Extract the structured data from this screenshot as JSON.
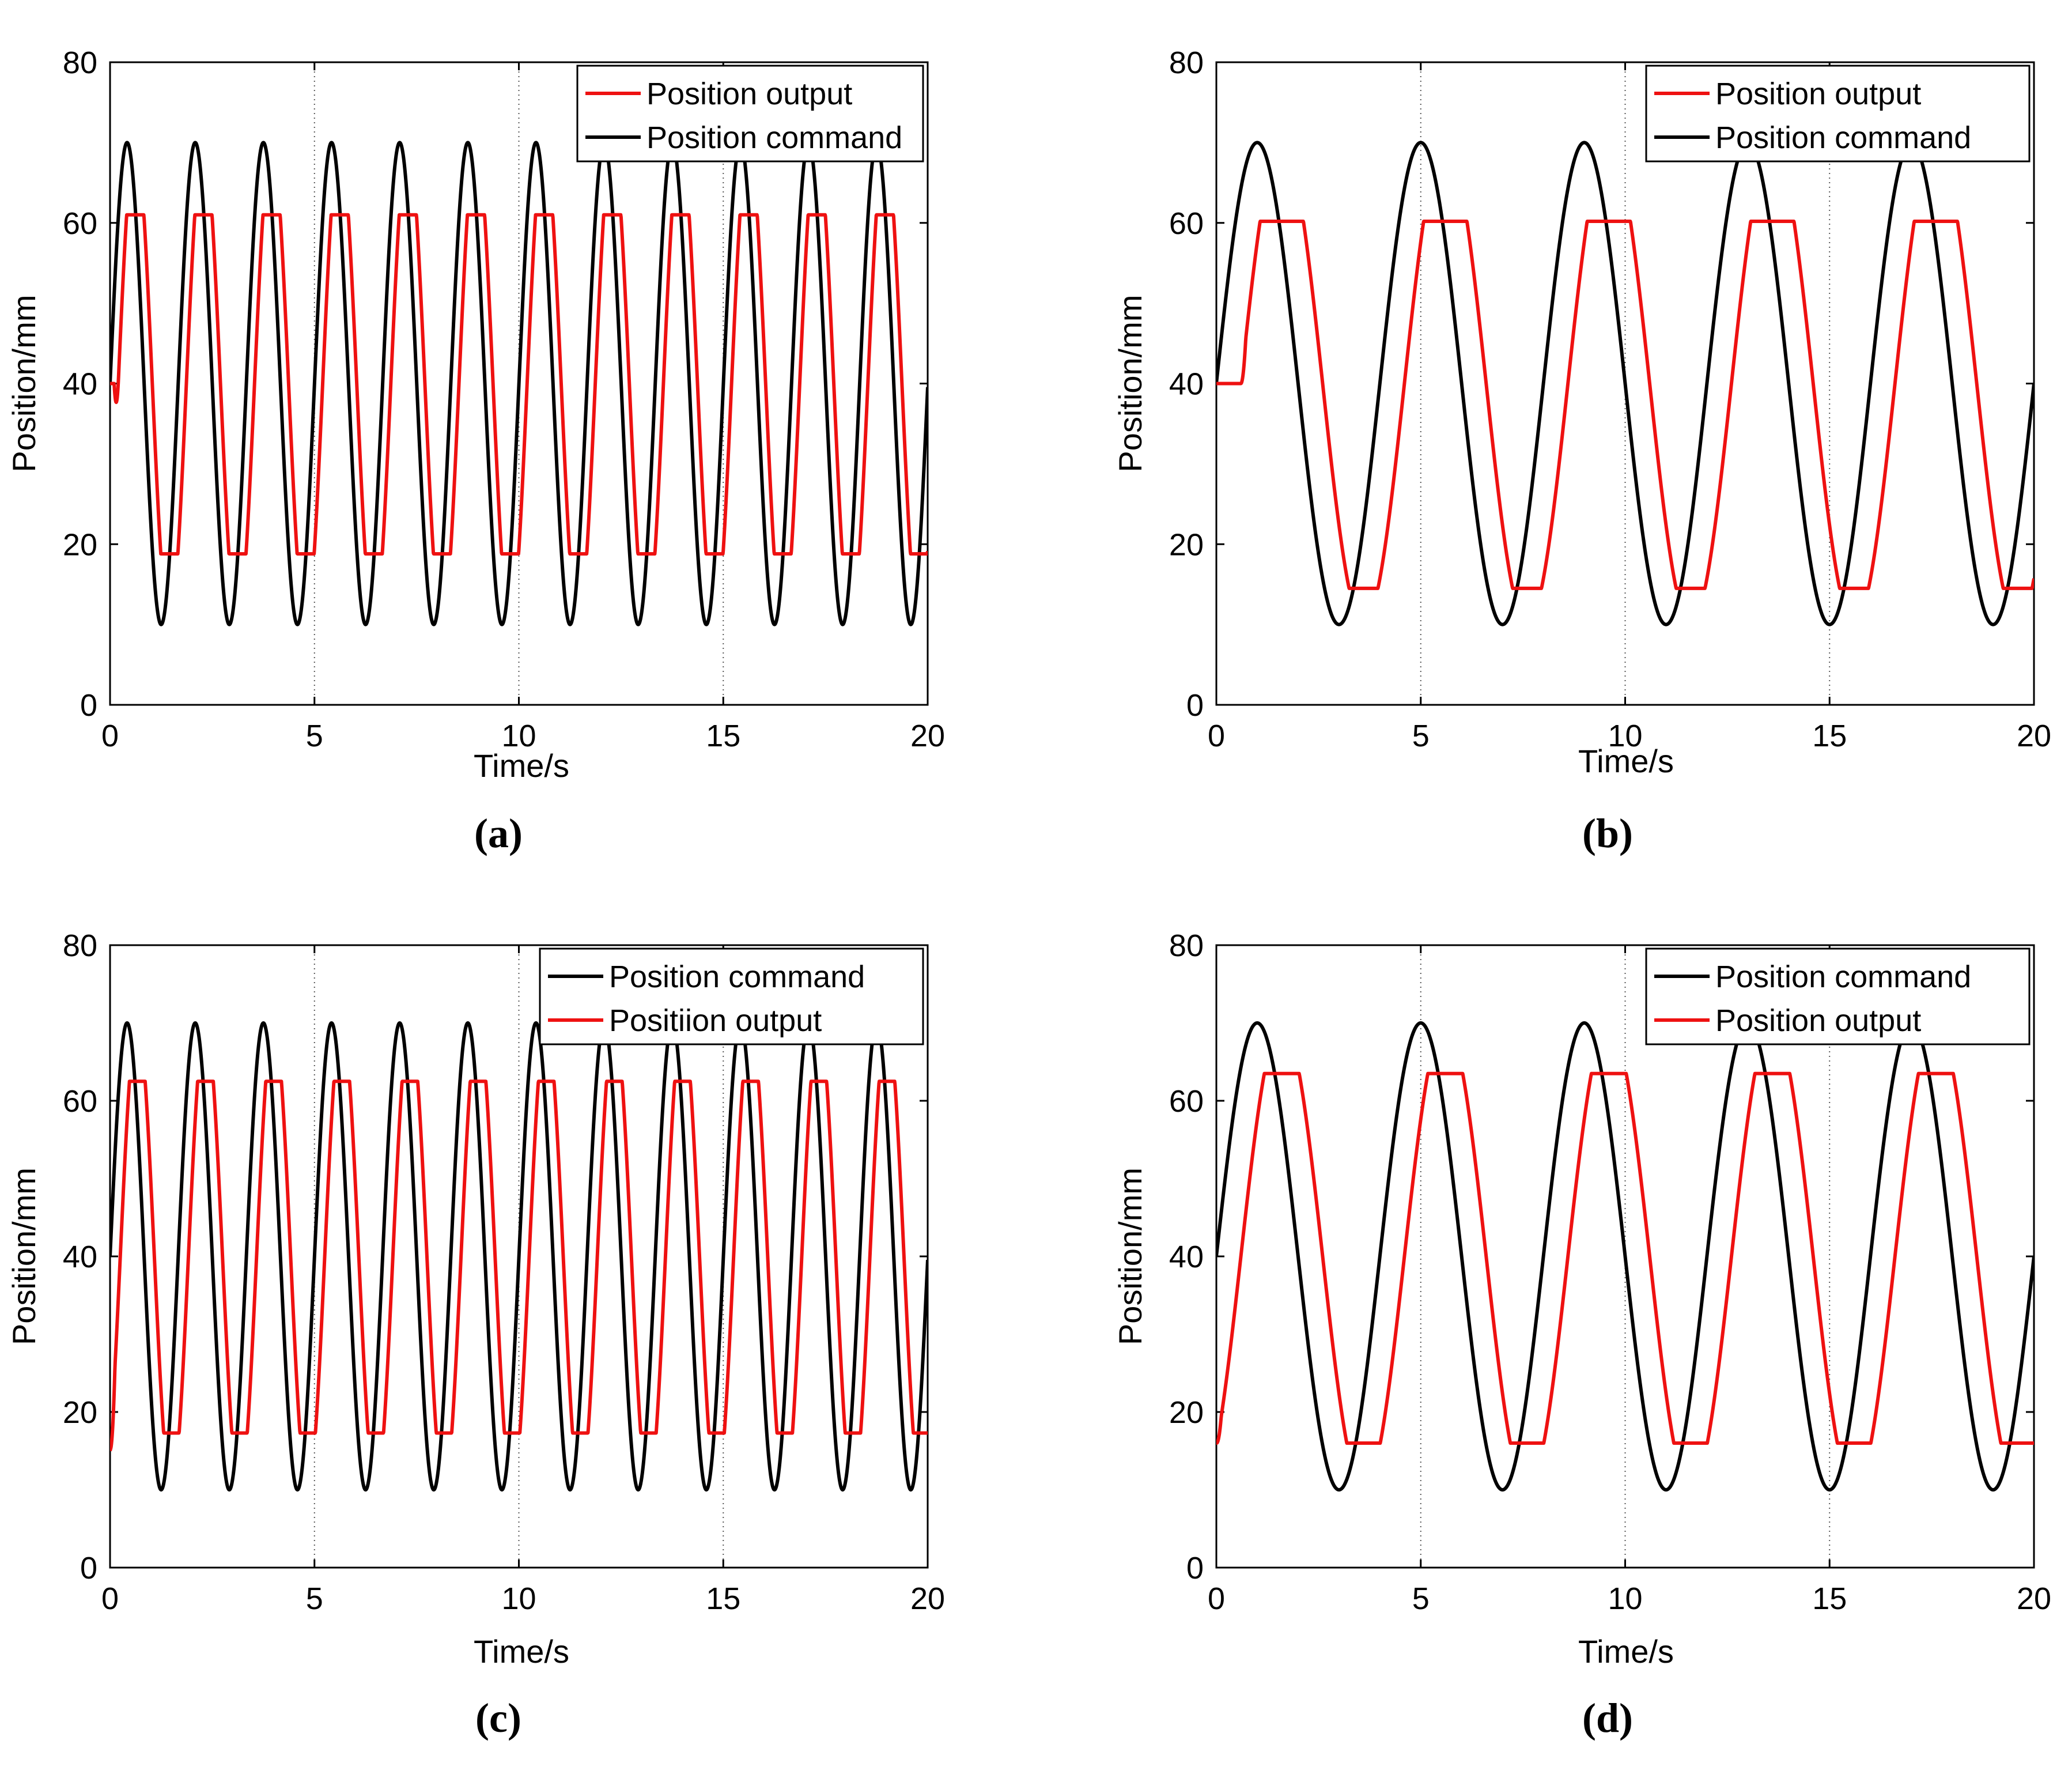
{
  "colors": {
    "command": "#000000",
    "output": "#ee1111",
    "grid": "#555555"
  },
  "chart_data": [
    {
      "panel": "a",
      "caption": "(a)",
      "type": "line",
      "xlabel": "Time/s",
      "ylabel": "Position/mm",
      "xlim": [
        0,
        20
      ],
      "ylim": [
        0,
        80
      ],
      "xticks": [
        0,
        5,
        10,
        15,
        20
      ],
      "yticks": [
        0,
        20,
        40,
        60,
        80
      ],
      "xtick_labels": [
        "0",
        "5",
        "10",
        "15",
        "20"
      ],
      "ytick_labels": [
        "0",
        "20",
        "40",
        "60",
        "80"
      ],
      "grid_x": [
        5,
        10,
        15
      ],
      "legend_placement": "top-right",
      "legend": [
        "Position output",
        "Position command"
      ],
      "series": [
        {
          "name": "Position command",
          "color": "#000000",
          "kind": "sine",
          "center": 40,
          "amplitude": 30,
          "period": 1.667,
          "t_end": 20
        },
        {
          "name": "Position output",
          "color": "#ee1111",
          "kind": "saturated",
          "center": 40,
          "amplitude": 30,
          "period": 1.667,
          "lag": 0.2,
          "max": 61,
          "min": 18.8,
          "start": 40,
          "start_hold": 0.1,
          "t_end": 20
        }
      ]
    },
    {
      "panel": "b",
      "caption": "(b)",
      "type": "line",
      "xlabel": "Time/s",
      "ylabel": "Position/mm",
      "xlim": [
        0,
        20
      ],
      "ylim": [
        0,
        80
      ],
      "xticks": [
        0,
        5,
        10,
        15,
        20
      ],
      "yticks": [
        0,
        20,
        40,
        60,
        80
      ],
      "xtick_labels": [
        "0",
        "5",
        "10",
        "15",
        "20"
      ],
      "ytick_labels": [
        "0",
        "20",
        "40",
        "60",
        "80"
      ],
      "grid_x": [
        5,
        10,
        15
      ],
      "legend_placement": "top-right",
      "legend": [
        "Position output",
        "Position command"
      ],
      "series": [
        {
          "name": "Position command",
          "color": "#000000",
          "kind": "sine",
          "center": 40,
          "amplitude": 30,
          "period": 4,
          "t_end": 20
        },
        {
          "name": "Position output",
          "color": "#ee1111",
          "kind": "saturated",
          "center": 40,
          "amplitude": 30,
          "period": 4,
          "lag": 0.6,
          "max": 60.2,
          "min": 14.5,
          "start": 40,
          "start_hold": 0.6,
          "t_end": 20
        }
      ]
    },
    {
      "panel": "c",
      "caption": "(c)",
      "type": "line",
      "xlabel": "Time/s",
      "ylabel": "Position/mm",
      "xlim": [
        0,
        20
      ],
      "ylim": [
        0,
        80
      ],
      "xticks": [
        0,
        5,
        10,
        15,
        20
      ],
      "yticks": [
        0,
        20,
        40,
        60,
        80
      ],
      "xtick_labels": [
        "0",
        "5",
        "10",
        "15",
        "20"
      ],
      "ytick_labels": [
        "0",
        "20",
        "40",
        "60",
        "80"
      ],
      "grid_x": [
        5,
        10,
        15
      ],
      "legend_placement": "top-right",
      "legend": [
        "Position command",
        "Positiion output"
      ],
      "series": [
        {
          "name": "Position command",
          "color": "#000000",
          "kind": "sine",
          "center": 40,
          "amplitude": 30,
          "period": 1.667,
          "t_end": 20
        },
        {
          "name": "Positiion output",
          "color": "#ee1111",
          "kind": "saturated",
          "center": 40,
          "amplitude": 30,
          "period": 1.667,
          "lag": 0.25,
          "max": 62.5,
          "min": 17.3,
          "start": 15,
          "start_hold": 0,
          "t_end": 20
        }
      ]
    },
    {
      "panel": "d",
      "caption": "(d)",
      "type": "line",
      "xlabel": "Time/s",
      "ylabel": "Position/mm",
      "xlim": [
        0,
        20
      ],
      "ylim": [
        0,
        80
      ],
      "xticks": [
        0,
        5,
        10,
        15,
        20
      ],
      "yticks": [
        0,
        20,
        40,
        60,
        80
      ],
      "xtick_labels": [
        "0",
        "5",
        "10",
        "15",
        "20"
      ],
      "ytick_labels": [
        "0",
        "20",
        "40",
        "60",
        "80"
      ],
      "grid_x": [
        5,
        10,
        15
      ],
      "legend_placement": "top-right",
      "legend": [
        "Position command",
        "Position output"
      ],
      "series": [
        {
          "name": "Position command",
          "color": "#000000",
          "kind": "sine",
          "center": 40,
          "amplitude": 30,
          "period": 4,
          "t_end": 20
        },
        {
          "name": "Position output",
          "color": "#ee1111",
          "kind": "saturated",
          "center": 40,
          "amplitude": 30,
          "period": 4,
          "lag": 0.6,
          "max": 63.5,
          "min": 16,
          "start": 16,
          "start_hold": 0,
          "t_end": 20
        }
      ]
    }
  ]
}
